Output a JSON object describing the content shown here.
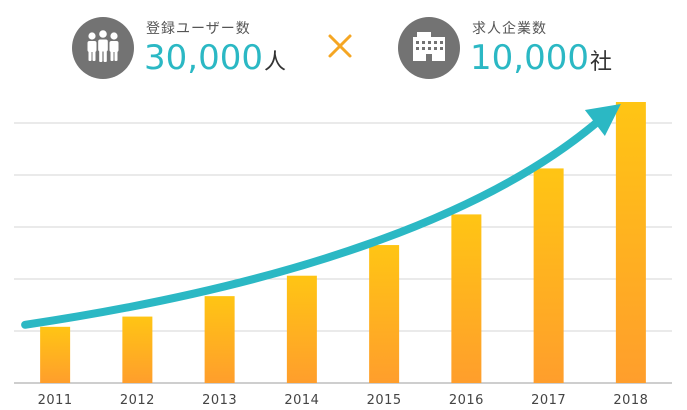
{
  "stats": {
    "users": {
      "label": "登録ユーザー数",
      "value": "30,000",
      "unit": "人",
      "icon": "people-icon"
    },
    "companies": {
      "label": "求人企業数",
      "value": "10,000",
      "unit": "社",
      "icon": "building-icon"
    },
    "operator": "×"
  },
  "colors": {
    "bar_top": "#ffc514",
    "bar_bottom": "#ff9e2c",
    "arrow": "#2bb8c4",
    "icon_circle": "#737373",
    "grid": "#d6d6d6",
    "operator": "#f5a623"
  },
  "chart_data": {
    "type": "bar",
    "categories": [
      "2011",
      "2012",
      "2013",
      "2014",
      "2015",
      "2016",
      "2017",
      "2018"
    ],
    "values": [
      11,
      13,
      17,
      21,
      27,
      33,
      42,
      55
    ],
    "title": "",
    "xlabel": "",
    "ylabel": "",
    "ylim": [
      0,
      55
    ],
    "grid": true,
    "annotation": "upward-trend-arrow"
  }
}
